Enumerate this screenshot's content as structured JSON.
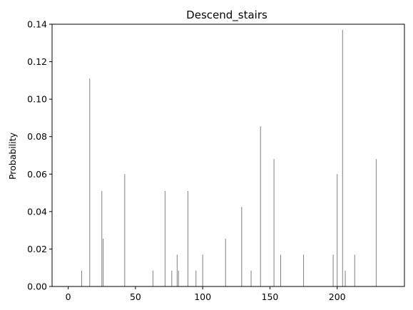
{
  "chart_data": {
    "type": "bar",
    "title": "Descend_stairs",
    "xlabel": "",
    "ylabel": "Probability",
    "xlim": [
      -12,
      250
    ],
    "ylim": [
      0,
      0.14
    ],
    "xticks": [
      0,
      50,
      100,
      150,
      200
    ],
    "yticks": [
      0.0,
      0.02,
      0.04,
      0.06,
      0.08,
      0.1,
      0.12,
      0.14
    ],
    "ytick_labels": [
      "0.00",
      "0.02",
      "0.04",
      "0.06",
      "0.08",
      "0.10",
      "0.12",
      "0.14"
    ],
    "grid": false,
    "bar_color": "#808080",
    "points": [
      {
        "x": 10,
        "y": 0.0085
      },
      {
        "x": 16,
        "y": 0.111
      },
      {
        "x": 25,
        "y": 0.051
      },
      {
        "x": 26,
        "y": 0.0255
      },
      {
        "x": 42,
        "y": 0.06
      },
      {
        "x": 63,
        "y": 0.0085
      },
      {
        "x": 72,
        "y": 0.051
      },
      {
        "x": 77,
        "y": 0.0085
      },
      {
        "x": 81,
        "y": 0.017
      },
      {
        "x": 82,
        "y": 0.0085
      },
      {
        "x": 89,
        "y": 0.051
      },
      {
        "x": 95,
        "y": 0.0085
      },
      {
        "x": 100,
        "y": 0.017
      },
      {
        "x": 117,
        "y": 0.0255
      },
      {
        "x": 129,
        "y": 0.0425
      },
      {
        "x": 136,
        "y": 0.0085
      },
      {
        "x": 143,
        "y": 0.0855
      },
      {
        "x": 153,
        "y": 0.068
      },
      {
        "x": 158,
        "y": 0.017
      },
      {
        "x": 175,
        "y": 0.017
      },
      {
        "x": 197,
        "y": 0.017
      },
      {
        "x": 200,
        "y": 0.06
      },
      {
        "x": 204,
        "y": 0.137
      },
      {
        "x": 206,
        "y": 0.0085
      },
      {
        "x": 213,
        "y": 0.017
      },
      {
        "x": 229,
        "y": 0.068
      }
    ]
  }
}
